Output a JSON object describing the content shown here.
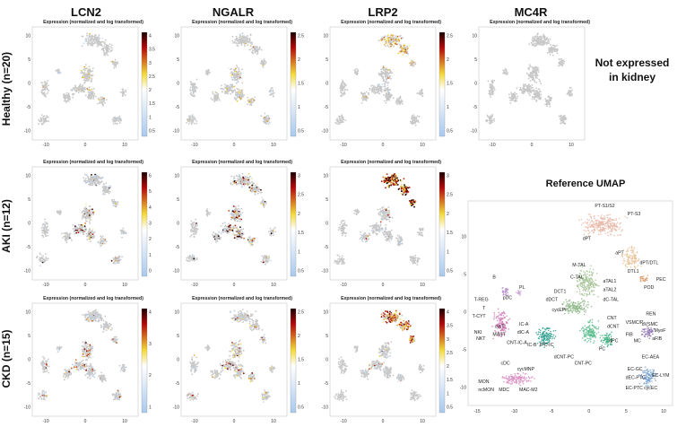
{
  "genes": [
    "LCN2",
    "NGALR",
    "LRP2",
    "MC4R"
  ],
  "conditions": [
    "Healthy (n=20)",
    "AKI (n=12)",
    "CKD (n=15)"
  ],
  "panel_title": "Expression (normalized and log transformed)",
  "not_expressed_note": [
    "Not expressed",
    "in kidney"
  ],
  "reference_title": "Reference UMAP",
  "colors": {
    "low": "#a9c9ee",
    "mid": "#f3d93a",
    "high": "#b40a0a",
    "top": "#1a0000",
    "grey": "#c8c8c8"
  },
  "chart_data": [
    {
      "type": "scatter",
      "gene": "LCN2",
      "condition": "Healthy (n=20)",
      "colorbar_ticks": [
        "4",
        "3.5",
        "3",
        "2.5",
        "2",
        "1.5",
        "1",
        "0.5"
      ],
      "x_ticks": [
        "-10",
        "0",
        "10"
      ],
      "y_ticks": [
        "10",
        "5",
        "0",
        "-5",
        "-10"
      ]
    },
    {
      "type": "scatter",
      "gene": "NGALR",
      "condition": "Healthy (n=20)",
      "colorbar_ticks": [
        "2.5",
        "2",
        "1.5",
        "1",
        "0.5"
      ],
      "x_ticks": [
        "-10",
        "0",
        "10"
      ],
      "y_ticks": [
        "10",
        "5",
        "0",
        "-5",
        "-10"
      ]
    },
    {
      "type": "scatter",
      "gene": "LRP2",
      "condition": "Healthy (n=20)",
      "colorbar_ticks": [
        "2.5",
        "2",
        "1.5",
        "1",
        "0.5"
      ],
      "x_ticks": [
        "-10",
        "0",
        "10"
      ],
      "y_ticks": [
        "10",
        "5",
        "0",
        "-5",
        "-10"
      ]
    },
    {
      "type": "scatter",
      "gene": "MC4R",
      "condition": "Healthy (n=20)",
      "colorbar_ticks": [],
      "x_ticks": [
        "-10",
        "0",
        "10"
      ],
      "y_ticks": [
        "10",
        "5",
        "0",
        "-5",
        "-10"
      ]
    },
    {
      "type": "scatter",
      "gene": "LCN2",
      "condition": "AKI (n=12)",
      "colorbar_ticks": [
        "6",
        "5",
        "4",
        "3",
        "2",
        "1",
        "0"
      ],
      "x_ticks": [
        "-10",
        "0",
        "10"
      ],
      "y_ticks": [
        "10",
        "5",
        "0",
        "-5",
        "-10"
      ]
    },
    {
      "type": "scatter",
      "gene": "NGALR",
      "condition": "AKI (n=12)",
      "colorbar_ticks": [
        "3",
        "2.5",
        "2",
        "1.5",
        "1",
        "0.5"
      ],
      "x_ticks": [
        "-10",
        "0",
        "10"
      ],
      "y_ticks": [
        "10",
        "5",
        "0",
        "-5",
        "-10"
      ]
    },
    {
      "type": "scatter",
      "gene": "LRP2",
      "condition": "AKI (n=12)",
      "colorbar_ticks": [
        "3",
        "2.5",
        "2",
        "1.5",
        "1",
        "0.5"
      ],
      "x_ticks": [
        "-10",
        "0",
        "10"
      ],
      "y_ticks": [
        "10",
        "5",
        "0",
        "-5",
        "-10"
      ]
    },
    {
      "type": "scatter",
      "gene": "LCN2",
      "condition": "CKD (n=15)",
      "colorbar_ticks": [
        "4",
        "3",
        "2",
        "1"
      ],
      "x_ticks": [
        "-10",
        "0",
        "10"
      ],
      "y_ticks": [
        "10",
        "5",
        "0",
        "-5",
        "-10"
      ]
    },
    {
      "type": "scatter",
      "gene": "NGALR",
      "condition": "CKD (n=15)",
      "colorbar_ticks": [
        "2.5",
        "2",
        "1.5",
        "1",
        "0.5"
      ],
      "x_ticks": [
        "-10",
        "0",
        "10"
      ],
      "y_ticks": [
        "10",
        "5",
        "0",
        "-5",
        "-10"
      ]
    },
    {
      "type": "scatter",
      "gene": "LRP2",
      "condition": "CKD (n=15)",
      "colorbar_ticks": [
        "4",
        "3.5",
        "3",
        "2.5",
        "2",
        "1.5",
        "1",
        "0.5"
      ],
      "x_ticks": [
        "-10",
        "0",
        "10"
      ],
      "y_ticks": [
        "10",
        "5",
        "0",
        "-5",
        "-10"
      ]
    },
    {
      "type": "scatter",
      "title": "Reference UMAP",
      "x_ticks": [
        "-15",
        "-10",
        "-5",
        "0",
        "5",
        "10"
      ],
      "y_ticks": [
        "10",
        "5",
        "0",
        "-5",
        "-10"
      ],
      "cluster_labels": [
        "PT-S1/S2",
        "PT-S3",
        "dPT",
        "aPT",
        "dPT/DTL",
        "DTL1",
        "PEC",
        "POD",
        "M-TAL",
        "C-TAL",
        "aTAL1",
        "aTAL2",
        "dC-TAL",
        "DCT1",
        "dDCT",
        "cycEPI",
        "CNT",
        "dCNT",
        "dPC",
        "PC",
        "IC-A",
        "dIC-A",
        "CNT-IC-A",
        "IC-B",
        "tPC-IC",
        "dCNT-PC",
        "CNT-PC",
        "B",
        "PL",
        "pDC",
        "T-REG",
        "T",
        "T-CYT",
        "cycT",
        "NKT",
        "NKI",
        "MAST",
        "REN",
        "VSMC/P",
        "dVSMC",
        "MyoF",
        "FIB",
        "aFIB",
        "MC",
        "cDC",
        "cycMNP",
        "MON",
        "ncMON",
        "MDC",
        "MAC-M2",
        "EC-AEA",
        "EC-GC",
        "dEC-PTC",
        "EC-LYM",
        "EC-PTC",
        "cycEC"
      ]
    }
  ]
}
